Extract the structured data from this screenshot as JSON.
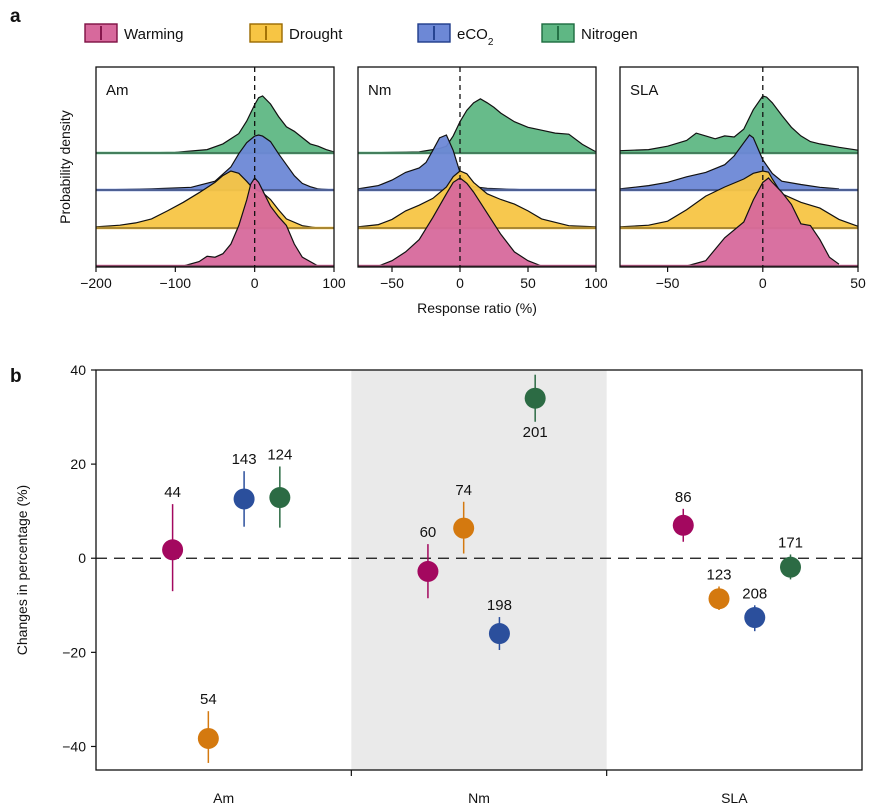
{
  "panel_a_label": "a",
  "panel_b_label": "b",
  "colors": {
    "Warming": {
      "fill": "#d7699c",
      "stroke": "#7d1043",
      "dot": "#a3085f"
    },
    "Drought": {
      "fill": "#f7c544",
      "stroke": "#9a6a00",
      "dot": "#d4790f"
    },
    "eCO2": {
      "fill": "#6d88d6",
      "stroke": "#1f3c8a",
      "dot": "#2b4f9c"
    },
    "Nitrogen": {
      "fill": "#5fb784",
      "stroke": "#1d6b3f",
      "dot": "#2c6b44"
    },
    "shade": "#eaeaea"
  },
  "legend": [
    {
      "key": "Warming",
      "label": "Warming",
      "sub": ""
    },
    {
      "key": "Drought",
      "label": "Drought",
      "sub": ""
    },
    {
      "key": "eCO2",
      "label": "eCO",
      "sub": "2"
    },
    {
      "key": "Nitrogen",
      "label": "Nitrogen",
      "sub": ""
    }
  ],
  "chart_data": [
    {
      "type": "area",
      "title": "Am",
      "xlabel": "Response ratio (%)",
      "ylabel": "Probability density",
      "xlim": [
        -200,
        100
      ],
      "xticks": [
        -200,
        -100,
        0,
        100
      ],
      "series": [
        {
          "name": "Nitrogen",
          "x": [
            -150,
            -100,
            -60,
            -40,
            -20,
            -10,
            0,
            5,
            10,
            20,
            30,
            40,
            50,
            60,
            70,
            80,
            90,
            100
          ],
          "y": [
            0,
            0.01,
            0.06,
            0.16,
            0.34,
            0.56,
            0.85,
            0.97,
            1.0,
            0.86,
            0.64,
            0.46,
            0.38,
            0.27,
            0.16,
            0.12,
            0.06,
            0.02
          ]
        },
        {
          "name": "eCO2",
          "x": [
            -200,
            -130,
            -80,
            -50,
            -30,
            -20,
            -10,
            0,
            5,
            10,
            20,
            30,
            40,
            50,
            60,
            70,
            80,
            100
          ],
          "y": [
            0,
            0.02,
            0.05,
            0.16,
            0.42,
            0.66,
            0.86,
            0.98,
            1.0,
            0.98,
            0.88,
            0.66,
            0.46,
            0.26,
            0.12,
            0.06,
            0.02,
            0
          ]
        },
        {
          "name": "Drought",
          "x": [
            -200,
            -170,
            -150,
            -130,
            -110,
            -90,
            -70,
            -50,
            -40,
            -30,
            -20,
            -10,
            -5,
            0,
            10,
            20,
            30,
            40,
            60,
            80
          ],
          "y": [
            0.02,
            0.05,
            0.09,
            0.16,
            0.3,
            0.45,
            0.62,
            0.8,
            0.92,
            1.0,
            0.96,
            0.82,
            0.74,
            0.68,
            0.62,
            0.5,
            0.32,
            0.16,
            0.04,
            0
          ]
        },
        {
          "name": "Warming",
          "x": [
            -90,
            -70,
            -60,
            -50,
            -40,
            -30,
            -20,
            -10,
            -5,
            0,
            5,
            10,
            20,
            30,
            40,
            50,
            60,
            80
          ],
          "y": [
            0,
            0.05,
            0.11,
            0.1,
            0.14,
            0.25,
            0.46,
            0.75,
            0.93,
            1.0,
            0.95,
            0.86,
            0.68,
            0.56,
            0.46,
            0.25,
            0.1,
            0
          ]
        }
      ]
    },
    {
      "type": "area",
      "title": "Nm",
      "xlabel": "Response ratio (%)",
      "ylabel": "",
      "xlim": [
        -75,
        100
      ],
      "xticks": [
        -50,
        0,
        50,
        100
      ],
      "series": [
        {
          "name": "Nitrogen",
          "x": [
            -75,
            -50,
            -30,
            -20,
            -15,
            -10,
            -5,
            0,
            5,
            10,
            15,
            20,
            25,
            30,
            40,
            50,
            60,
            70,
            80,
            90,
            100
          ],
          "y": [
            0,
            0.01,
            0.02,
            0.06,
            0.08,
            0.12,
            0.3,
            0.55,
            0.75,
            0.88,
            0.95,
            0.88,
            0.8,
            0.7,
            0.55,
            0.45,
            0.4,
            0.35,
            0.33,
            0.15,
            0.02
          ]
        },
        {
          "name": "eCO2",
          "x": [
            -75,
            -60,
            -50,
            -40,
            -30,
            -25,
            -20,
            -15,
            -10,
            -5,
            0,
            5,
            10,
            20,
            30,
            40,
            50
          ],
          "y": [
            0.02,
            0.08,
            0.18,
            0.32,
            0.4,
            0.5,
            0.72,
            0.95,
            1.0,
            0.72,
            0.32,
            0.12,
            0.06,
            0.03,
            0.02,
            0.01,
            0
          ]
        },
        {
          "name": "Drought",
          "x": [
            -75,
            -60,
            -50,
            -40,
            -30,
            -20,
            -10,
            -5,
            0,
            5,
            10,
            20,
            30,
            40,
            50,
            60,
            80,
            100
          ],
          "y": [
            0.02,
            0.06,
            0.15,
            0.3,
            0.4,
            0.52,
            0.72,
            0.9,
            1.0,
            0.95,
            0.8,
            0.6,
            0.5,
            0.42,
            0.3,
            0.16,
            0.04,
            0.02
          ]
        },
        {
          "name": "Warming",
          "x": [
            -60,
            -50,
            -40,
            -30,
            -20,
            -10,
            -5,
            0,
            5,
            10,
            20,
            30,
            40,
            50,
            60
          ],
          "y": [
            0,
            0.06,
            0.16,
            0.3,
            0.55,
            0.82,
            0.95,
            1.0,
            0.94,
            0.84,
            0.6,
            0.36,
            0.16,
            0.06,
            0
          ]
        }
      ]
    },
    {
      "type": "area",
      "title": "SLA",
      "xlabel": "Response ratio (%)",
      "ylabel": "",
      "xlim": [
        -75,
        50
      ],
      "xticks": [
        -50,
        0,
        50
      ],
      "series": [
        {
          "name": "Nitrogen",
          "x": [
            -75,
            -60,
            -50,
            -40,
            -35,
            -30,
            -25,
            -20,
            -15,
            -10,
            -5,
            0,
            2,
            5,
            10,
            15,
            20,
            25,
            30,
            40,
            50
          ],
          "y": [
            0.04,
            0.06,
            0.12,
            0.22,
            0.35,
            0.3,
            0.25,
            0.3,
            0.28,
            0.42,
            0.76,
            1.0,
            0.98,
            0.88,
            0.66,
            0.45,
            0.3,
            0.2,
            0.16,
            0.1,
            0.05
          ]
        },
        {
          "name": "eCO2",
          "x": [
            -75,
            -60,
            -50,
            -40,
            -30,
            -20,
            -15,
            -10,
            -7,
            -5,
            0,
            5,
            10,
            20,
            30,
            40
          ],
          "y": [
            0.02,
            0.08,
            0.14,
            0.24,
            0.32,
            0.46,
            0.62,
            0.86,
            1.0,
            0.95,
            0.55,
            0.3,
            0.16,
            0.1,
            0.05,
            0.02
          ]
        },
        {
          "name": "Drought",
          "x": [
            -75,
            -60,
            -50,
            -40,
            -30,
            -20,
            -10,
            -5,
            0,
            3,
            5,
            10,
            20,
            30,
            40,
            50
          ],
          "y": [
            0.02,
            0.05,
            0.12,
            0.32,
            0.56,
            0.72,
            0.86,
            0.96,
            1.0,
            0.98,
            0.86,
            0.6,
            0.45,
            0.35,
            0.15,
            0.03
          ]
        },
        {
          "name": "Warming",
          "x": [
            -40,
            -30,
            -20,
            -10,
            -5,
            0,
            3,
            5,
            10,
            15,
            20,
            25,
            30,
            35,
            40
          ],
          "y": [
            0,
            0.06,
            0.32,
            0.5,
            0.75,
            0.95,
            1.0,
            0.95,
            0.84,
            0.7,
            0.48,
            0.46,
            0.3,
            0.1,
            0.02
          ]
        }
      ]
    },
    {
      "type": "scatter",
      "title": "",
      "xlabel": "",
      "ylabel": "Changes in percentage (%)",
      "ylim": [
        -45,
        40
      ],
      "yticks": [
        -40,
        -20,
        0,
        20,
        40
      ],
      "categories": [
        "Am",
        "Nm",
        "SLA"
      ],
      "shaded_category": "Nm",
      "points": [
        {
          "category": "Am",
          "series": "Warming",
          "value": 1.8,
          "lower": -7,
          "upper": 11.5,
          "n": "44"
        },
        {
          "category": "Am",
          "series": "Drought",
          "value": -38.3,
          "lower": -43.5,
          "upper": -32.5,
          "n": "54"
        },
        {
          "category": "Am",
          "series": "eCO2",
          "value": 12.6,
          "lower": 6.7,
          "upper": 18.5,
          "n": "143"
        },
        {
          "category": "Am",
          "series": "Nitrogen",
          "value": 12.9,
          "lower": 6.5,
          "upper": 19.5,
          "n": "124"
        },
        {
          "category": "Nm",
          "series": "Warming",
          "value": -2.8,
          "lower": -8.5,
          "upper": 3.0,
          "n": "60"
        },
        {
          "category": "Nm",
          "series": "Drought",
          "value": 6.4,
          "lower": 1.0,
          "upper": 12.0,
          "n": "74"
        },
        {
          "category": "Nm",
          "series": "eCO2",
          "value": -16.0,
          "lower": -19.5,
          "upper": -12.5,
          "n": "198"
        },
        {
          "category": "Nm",
          "series": "Nitrogen",
          "value": 34.0,
          "lower": 29.0,
          "upper": 39.0,
          "n": "201"
        },
        {
          "category": "SLA",
          "series": "Warming",
          "value": 7.0,
          "lower": 3.5,
          "upper": 10.5,
          "n": "86"
        },
        {
          "category": "SLA",
          "series": "Drought",
          "value": -8.6,
          "lower": -11.0,
          "upper": -6.0,
          "n": "123"
        },
        {
          "category": "SLA",
          "series": "eCO2",
          "value": -12.6,
          "lower": -15.5,
          "upper": -10.0,
          "n": "208"
        },
        {
          "category": "SLA",
          "series": "Nitrogen",
          "value": -1.9,
          "lower": -4.5,
          "upper": 0.8,
          "n": "171"
        }
      ]
    }
  ]
}
